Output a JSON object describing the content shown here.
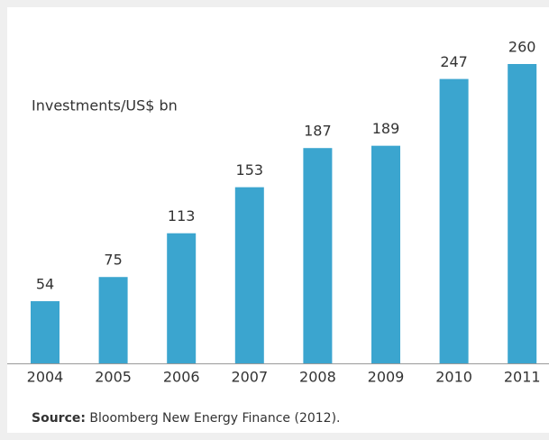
{
  "chart_data": {
    "type": "bar",
    "y_label": "Investments/US$ bn",
    "categories": [
      "2004",
      "2005",
      "2006",
      "2007",
      "2008",
      "2009",
      "2010",
      "2011"
    ],
    "values": [
      54,
      75,
      113,
      153,
      187,
      189,
      247,
      260
    ],
    "color": "#3ba5cf",
    "source_label": "Source:",
    "source_text": "Bloomberg New Energy Finance (2012)."
  }
}
